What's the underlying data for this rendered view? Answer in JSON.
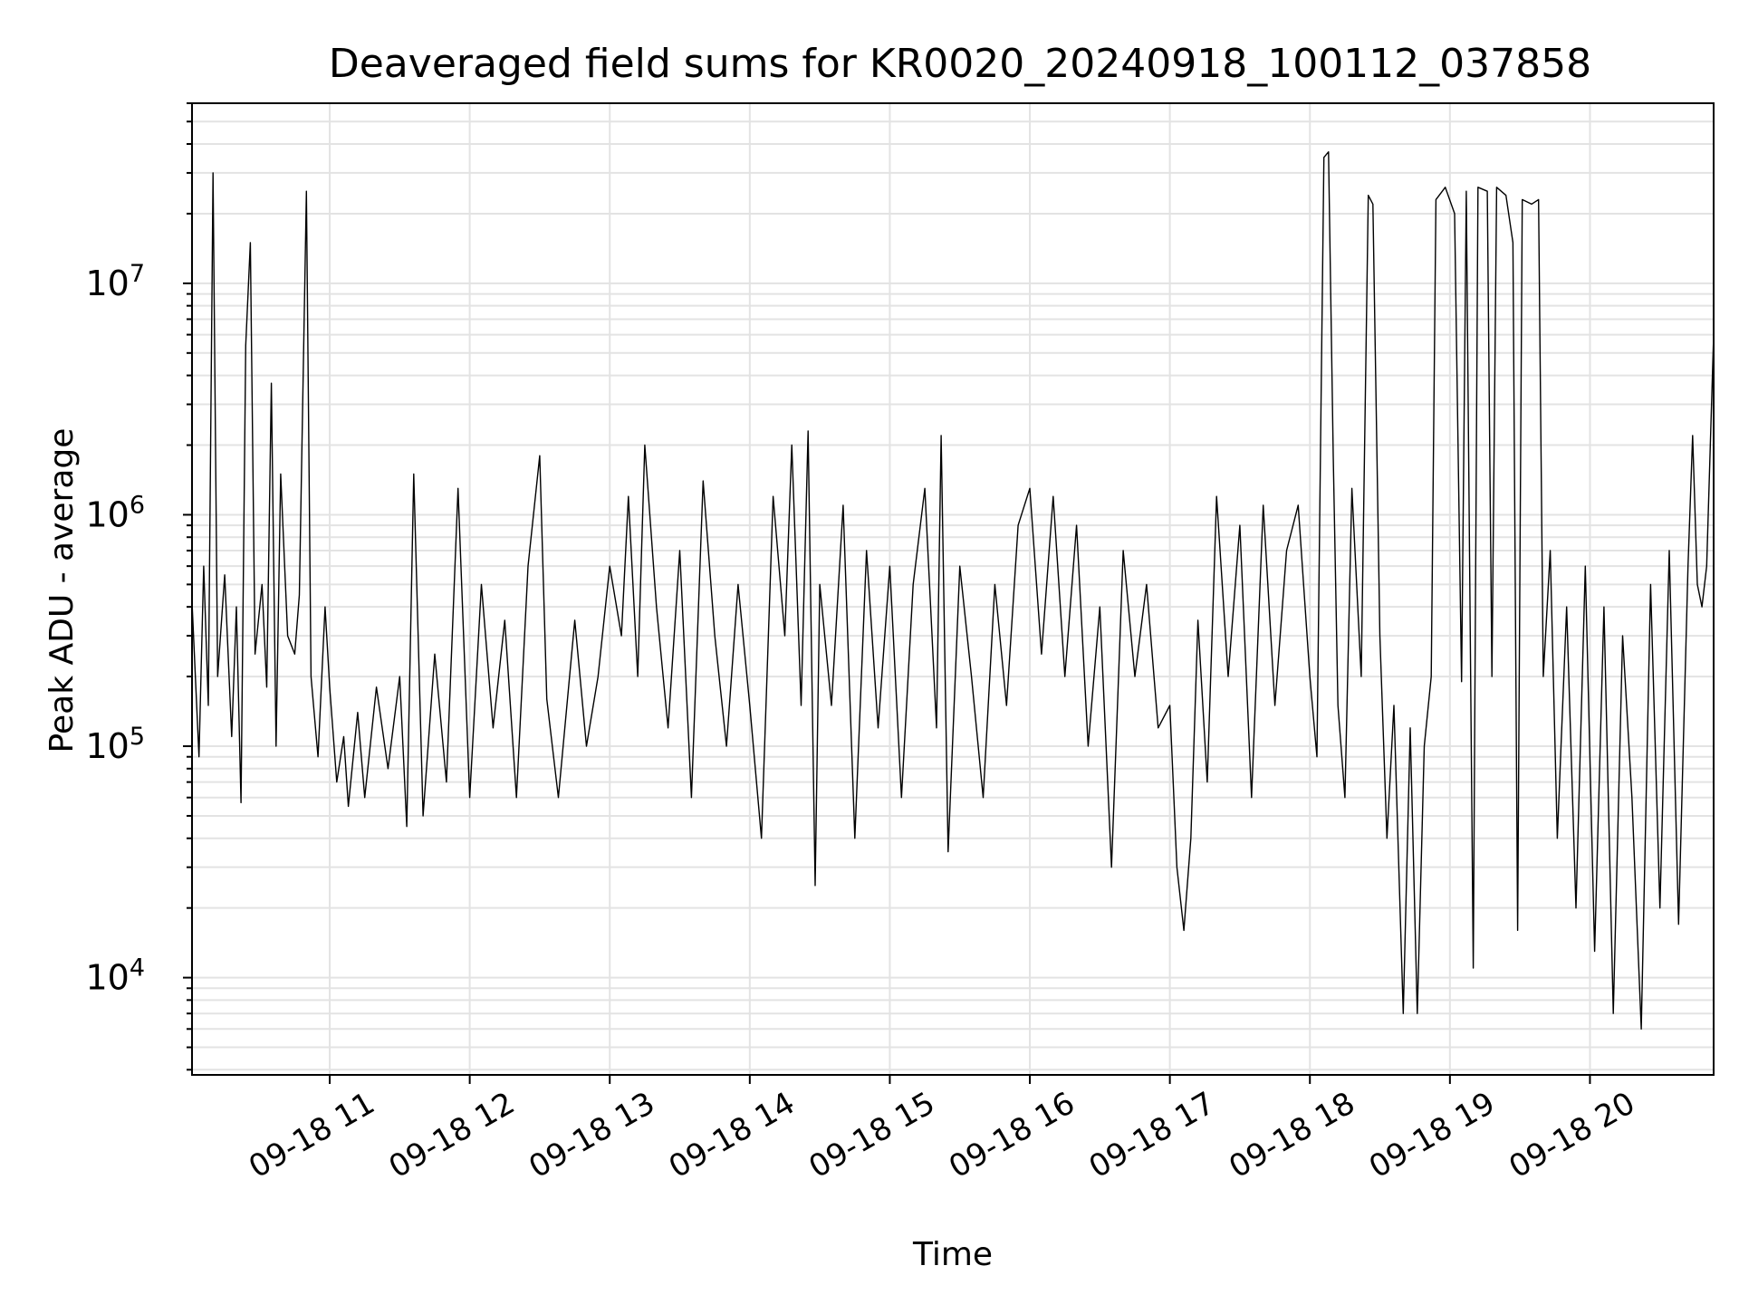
{
  "chart_data": {
    "type": "line",
    "title": "Deaveraged field sums for KR0020_20240918_100112_037858",
    "xlabel": "Time",
    "ylabel": "Peak ADU - average",
    "x_scale": "time",
    "y_scale": "log",
    "xlim": [
      "2024-09-18 10:01",
      "2024-09-18 20:53"
    ],
    "ylim": [
      3800,
      60000000
    ],
    "x_ticks": [
      "09-18 11",
      "09-18 12",
      "09-18 13",
      "09-18 14",
      "09-18 15",
      "09-18 16",
      "09-18 17",
      "09-18 18",
      "09-18 19",
      "09-18 20"
    ],
    "y_ticks": [
      {
        "base": "10",
        "exp": "4"
      },
      {
        "base": "10",
        "exp": "5"
      },
      {
        "base": "10",
        "exp": "6"
      },
      {
        "base": "10",
        "exp": "7"
      }
    ],
    "grid": true,
    "line_color": "#000000",
    "series": [
      {
        "values": [
          [
            "10:01",
            420000
          ],
          [
            "10:04",
            90000
          ],
          [
            "10:06",
            600000
          ],
          [
            "10:08",
            150000
          ],
          [
            "10:10",
            30000000
          ],
          [
            "10:12",
            200000
          ],
          [
            "10:15",
            550000
          ],
          [
            "10:18",
            110000
          ],
          [
            "10:20",
            400000
          ],
          [
            "10:22",
            57000
          ],
          [
            "10:24",
            5400000
          ],
          [
            "10:26",
            15000000
          ],
          [
            "10:28",
            250000
          ],
          [
            "10:31",
            500000
          ],
          [
            "10:33",
            180000
          ],
          [
            "10:35",
            3700000
          ],
          [
            "10:37",
            100000
          ],
          [
            "10:39",
            1500000
          ],
          [
            "10:42",
            300000
          ],
          [
            "10:45",
            250000
          ],
          [
            "10:47",
            450000
          ],
          [
            "10:50",
            25000000
          ],
          [
            "10:52",
            200000
          ],
          [
            "10:55",
            90000
          ],
          [
            "10:58",
            400000
          ],
          [
            "11:00",
            180000
          ],
          [
            "11:03",
            70000
          ],
          [
            "11:06",
            110000
          ],
          [
            "11:08",
            55000
          ],
          [
            "11:12",
            140000
          ],
          [
            "11:15",
            60000
          ],
          [
            "11:20",
            180000
          ],
          [
            "11:25",
            80000
          ],
          [
            "11:30",
            200000
          ],
          [
            "11:33",
            45000
          ],
          [
            "11:36",
            1500000
          ],
          [
            "11:40",
            50000
          ],
          [
            "11:45",
            250000
          ],
          [
            "11:50",
            70000
          ],
          [
            "11:55",
            1300000
          ],
          [
            "12:00",
            60000
          ],
          [
            "12:05",
            500000
          ],
          [
            "12:10",
            120000
          ],
          [
            "12:15",
            350000
          ],
          [
            "12:20",
            60000
          ],
          [
            "12:25",
            600000
          ],
          [
            "12:30",
            1800000
          ],
          [
            "12:33",
            160000
          ],
          [
            "12:38",
            60000
          ],
          [
            "12:45",
            350000
          ],
          [
            "12:50",
            100000
          ],
          [
            "12:55",
            200000
          ],
          [
            "13:00",
            600000
          ],
          [
            "13:05",
            300000
          ],
          [
            "13:08",
            1200000
          ],
          [
            "13:12",
            200000
          ],
          [
            "13:15",
            2000000
          ],
          [
            "13:20",
            400000
          ],
          [
            "13:25",
            120000
          ],
          [
            "13:30",
            700000
          ],
          [
            "13:35",
            60000
          ],
          [
            "13:40",
            1400000
          ],
          [
            "13:45",
            300000
          ],
          [
            "13:50",
            100000
          ],
          [
            "13:55",
            500000
          ],
          [
            "14:00",
            150000
          ],
          [
            "14:05",
            40000
          ],
          [
            "14:10",
            1200000
          ],
          [
            "14:15",
            300000
          ],
          [
            "14:18",
            2000000
          ],
          [
            "14:22",
            150000
          ],
          [
            "14:25",
            2300000
          ],
          [
            "14:28",
            25000
          ],
          [
            "14:30",
            500000
          ],
          [
            "14:35",
            150000
          ],
          [
            "14:40",
            1100000
          ],
          [
            "14:45",
            40000
          ],
          [
            "14:50",
            700000
          ],
          [
            "14:55",
            120000
          ],
          [
            "15:00",
            600000
          ],
          [
            "15:05",
            60000
          ],
          [
            "15:10",
            500000
          ],
          [
            "15:15",
            1300000
          ],
          [
            "15:20",
            120000
          ],
          [
            "15:22",
            2200000
          ],
          [
            "15:25",
            35000
          ],
          [
            "15:30",
            600000
          ],
          [
            "15:35",
            200000
          ],
          [
            "15:40",
            60000
          ],
          [
            "15:45",
            500000
          ],
          [
            "15:50",
            150000
          ],
          [
            "15:55",
            900000
          ],
          [
            "16:00",
            1300000
          ],
          [
            "16:05",
            250000
          ],
          [
            "16:10",
            1200000
          ],
          [
            "16:15",
            200000
          ],
          [
            "16:20",
            900000
          ],
          [
            "16:25",
            100000
          ],
          [
            "16:30",
            400000
          ],
          [
            "16:35",
            30000
          ],
          [
            "16:40",
            700000
          ],
          [
            "16:45",
            200000
          ],
          [
            "16:50",
            500000
          ],
          [
            "16:55",
            120000
          ],
          [
            "17:00",
            150000
          ],
          [
            "17:03",
            30000
          ],
          [
            "17:06",
            16000
          ],
          [
            "17:09",
            40000
          ],
          [
            "17:12",
            350000
          ],
          [
            "17:16",
            70000
          ],
          [
            "17:20",
            1200000
          ],
          [
            "17:25",
            200000
          ],
          [
            "17:30",
            900000
          ],
          [
            "17:35",
            60000
          ],
          [
            "17:40",
            1100000
          ],
          [
            "17:45",
            150000
          ],
          [
            "17:50",
            700000
          ],
          [
            "17:55",
            1100000
          ],
          [
            "18:00",
            200000
          ],
          [
            "18:03",
            90000
          ],
          [
            "18:06",
            35000000
          ],
          [
            "18:08",
            37000000
          ],
          [
            "18:10",
            1800000
          ],
          [
            "18:12",
            150000
          ],
          [
            "18:15",
            60000
          ],
          [
            "18:18",
            1300000
          ],
          [
            "18:22",
            200000
          ],
          [
            "18:25",
            24000000
          ],
          [
            "18:27",
            22000000
          ],
          [
            "18:30",
            300000
          ],
          [
            "18:33",
            40000
          ],
          [
            "18:36",
            150000
          ],
          [
            "18:40",
            7000
          ],
          [
            "18:43",
            120000
          ],
          [
            "18:46",
            7000
          ],
          [
            "18:49",
            100000
          ],
          [
            "18:52",
            200000
          ],
          [
            "18:54",
            23000000
          ],
          [
            "18:58",
            26000000
          ],
          [
            "19:02",
            20000000
          ],
          [
            "19:05",
            190000
          ],
          [
            "19:07",
            25000000
          ],
          [
            "19:10",
            11000
          ],
          [
            "19:12",
            26000000
          ],
          [
            "19:16",
            25000000
          ],
          [
            "19:18",
            200000
          ],
          [
            "19:20",
            26000000
          ],
          [
            "19:24",
            24000000
          ],
          [
            "19:27",
            15000000
          ],
          [
            "19:29",
            16000
          ],
          [
            "19:31",
            23000000
          ],
          [
            "19:35",
            22000000
          ],
          [
            "19:38",
            23000000
          ],
          [
            "19:40",
            200000
          ],
          [
            "19:43",
            700000
          ],
          [
            "19:46",
            40000
          ],
          [
            "19:50",
            400000
          ],
          [
            "19:54",
            20000
          ],
          [
            "19:58",
            600000
          ],
          [
            "20:02",
            13000
          ],
          [
            "20:06",
            400000
          ],
          [
            "20:10",
            7000
          ],
          [
            "20:14",
            300000
          ],
          [
            "20:18",
            60000
          ],
          [
            "20:22",
            6000
          ],
          [
            "20:26",
            500000
          ],
          [
            "20:30",
            20000
          ],
          [
            "20:34",
            700000
          ],
          [
            "20:38",
            17000
          ],
          [
            "20:42",
            600000
          ],
          [
            "20:44",
            2200000
          ],
          [
            "20:46",
            500000
          ],
          [
            "20:48",
            400000
          ],
          [
            "20:50",
            600000
          ],
          [
            "20:53",
            6000000
          ]
        ]
      }
    ]
  }
}
